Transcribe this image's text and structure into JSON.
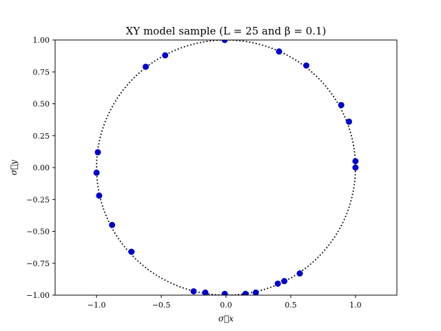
{
  "chart_data": {
    "type": "scatter",
    "title": "XY model sample (L = 25 and β = 0.1)",
    "xlabel": "σ⃗x",
    "ylabel": "σ⃗y",
    "xlim": [
      -1.32,
      1.32
    ],
    "ylim": [
      -1.0,
      1.0
    ],
    "x_ticks": [
      -1.0,
      -0.5,
      0.0,
      0.5,
      1.0
    ],
    "x_tick_labels": [
      "−1.0",
      "−0.5",
      "0.0",
      "0.5",
      "1.0"
    ],
    "y_ticks": [
      -1.0,
      -0.75,
      -0.5,
      -0.25,
      0.0,
      0.25,
      0.5,
      0.75,
      1.0
    ],
    "y_tick_labels": [
      "−1.00",
      "−0.75",
      "−0.50",
      "−0.25",
      "0.00",
      "0.25",
      "0.50",
      "0.75",
      "1.00"
    ],
    "grid": false,
    "reference_curve": {
      "type": "circle",
      "center": [
        0,
        0
      ],
      "radius": 1,
      "style": "dotted",
      "color": "#000000"
    },
    "series": [
      {
        "marker_color": "#0000cc",
        "x": [
          -0.01,
          0.41,
          0.62,
          0.89,
          0.95,
          1.0,
          1.0,
          -0.99,
          -1.0,
          -0.98,
          -0.88,
          -0.73,
          -0.62,
          -0.47,
          -0.25,
          -0.16,
          -0.01,
          0.15,
          0.23,
          0.4,
          0.45,
          0.57
        ],
        "y": [
          1.0,
          0.91,
          0.8,
          0.49,
          0.36,
          0.05,
          0.0,
          0.12,
          -0.04,
          -0.22,
          -0.45,
          -0.66,
          0.79,
          0.88,
          -0.97,
          -0.98,
          -0.99,
          -0.99,
          -0.98,
          -0.91,
          -0.89,
          -0.83
        ]
      }
    ]
  }
}
